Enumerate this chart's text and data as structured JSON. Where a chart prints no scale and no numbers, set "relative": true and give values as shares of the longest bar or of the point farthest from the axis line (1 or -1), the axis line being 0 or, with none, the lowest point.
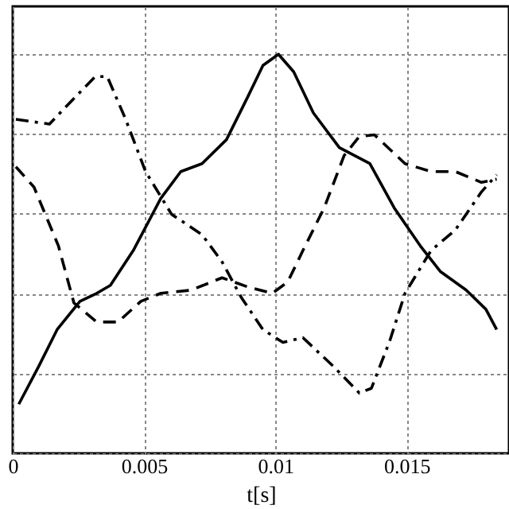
{
  "chart_data": {
    "type": "line",
    "xlabel": "t[s]",
    "relative": true,
    "grid": true,
    "xlim": [
      0,
      0.0189
    ],
    "xticks": [
      0,
      0.005,
      0.01,
      0.015
    ],
    "series": [
      {
        "color": "#000000",
        "line_style": "solid",
        "x": [
          0.00023,
          0.00099,
          0.00169,
          0.00256,
          0.0032,
          0.00372,
          0.00459,
          0.00564,
          0.0064,
          0.00721,
          0.00814,
          0.00895,
          0.00953,
          0.01012,
          0.0107,
          0.01145,
          0.01244,
          0.0136,
          0.01453,
          0.01552,
          0.01628,
          0.01727,
          0.01802,
          0.01843
        ],
        "values": [
          0.123,
          0.218,
          0.31,
          0.381,
          0.401,
          0.421,
          0.508,
          0.639,
          0.706,
          0.726,
          0.786,
          0.893,
          0.972,
          1.0,
          0.956,
          0.853,
          0.766,
          0.726,
          0.615,
          0.52,
          0.456,
          0.409,
          0.361,
          0.31
        ]
      },
      {
        "color": "#000000",
        "line_style": "dashed",
        "x": [
          0.00012,
          0.00081,
          0.00174,
          0.00233,
          0.0032,
          0.00401,
          0.00488,
          0.00564,
          0.0068,
          0.00797,
          0.00895,
          0.00988,
          0.01047,
          0.01105,
          0.01186,
          0.01262,
          0.0132,
          0.01378,
          0.01494,
          0.01593,
          0.01686,
          0.01785,
          0.01843
        ],
        "values": [
          0.718,
          0.667,
          0.52,
          0.377,
          0.329,
          0.329,
          0.381,
          0.401,
          0.409,
          0.44,
          0.417,
          0.401,
          0.429,
          0.508,
          0.615,
          0.746,
          0.794,
          0.798,
          0.726,
          0.706,
          0.706,
          0.679,
          0.687
        ]
      },
      {
        "color": "#000000",
        "line_style": "dashdot",
        "x": [
          0.00012,
          0.0014,
          0.00215,
          0.00314,
          0.0036,
          0.0043,
          0.00506,
          0.00605,
          0.00721,
          0.00797,
          0.00872,
          0.00953,
          0.01029,
          0.01105,
          0.01221,
          0.0132,
          0.01366,
          0.01436,
          0.01494,
          0.01593,
          0.01686,
          0.01785,
          0.01843
        ],
        "values": [
          0.837,
          0.825,
          0.877,
          0.944,
          0.944,
          0.837,
          0.706,
          0.599,
          0.548,
          0.48,
          0.389,
          0.31,
          0.278,
          0.29,
          0.218,
          0.151,
          0.163,
          0.282,
          0.401,
          0.508,
          0.56,
          0.655,
          0.698
        ]
      }
    ]
  }
}
